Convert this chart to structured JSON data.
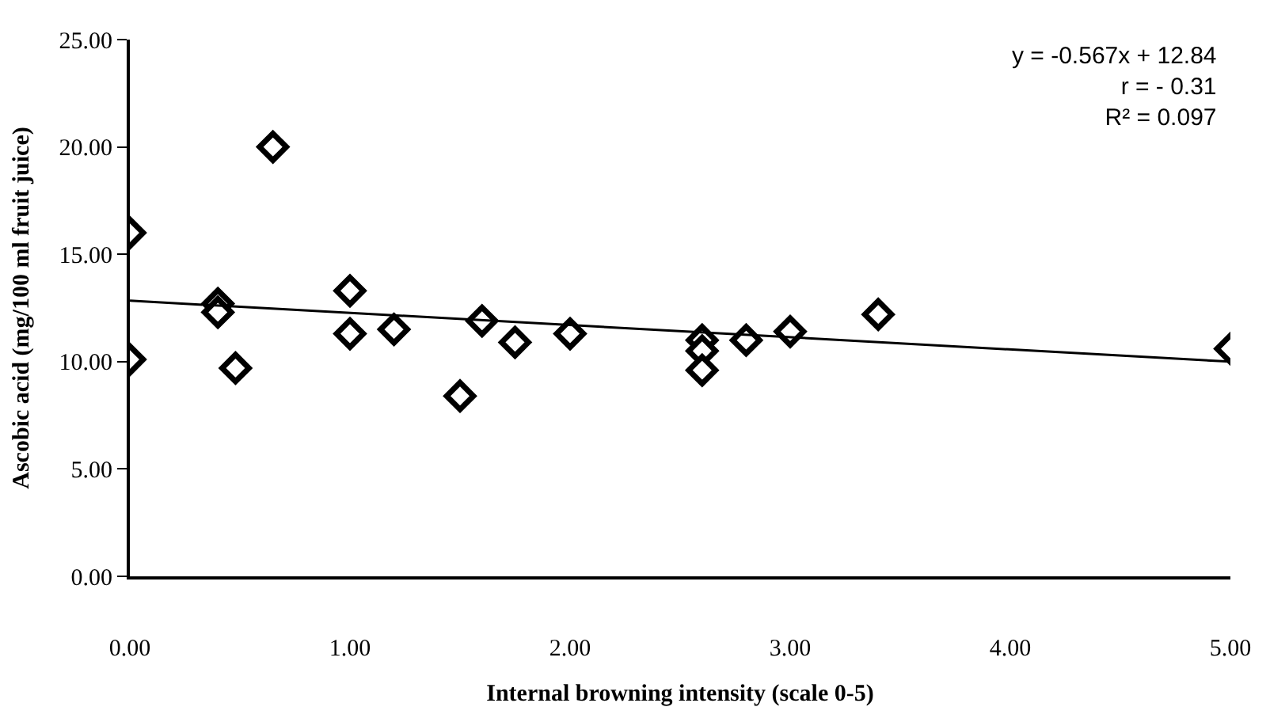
{
  "chart_data": {
    "type": "scatter",
    "xlabel": "Internal browning intensity (scale 0-5)",
    "ylabel": "Ascobic acid (mg/100 ml fruit juice)",
    "annotations": [
      "y = -0.567x + 12.84",
      "r = - 0.31",
      "R² = 0.097"
    ],
    "marker": "diamond",
    "xlim": [
      0,
      5
    ],
    "ylim": [
      0,
      25
    ],
    "xticks": [
      {
        "value": 0,
        "label": "0.00"
      },
      {
        "value": 1,
        "label": "1.00"
      },
      {
        "value": 2,
        "label": "2.00"
      },
      {
        "value": 3,
        "label": "3.00"
      },
      {
        "value": 4,
        "label": "4.00"
      },
      {
        "value": 5,
        "label": "5.00"
      }
    ],
    "yticks": [
      {
        "value": 0,
        "label": "0.00"
      },
      {
        "value": 5,
        "label": "5.00"
      },
      {
        "value": 10,
        "label": "10.00"
      },
      {
        "value": 15,
        "label": "15.00"
      },
      {
        "value": 20,
        "label": "20.00"
      },
      {
        "value": 25,
        "label": "25.00"
      }
    ],
    "series": [
      {
        "color": "#000000",
        "x": [
          0,
          0,
          0.4,
          0.4,
          0.48,
          0.65,
          1.0,
          1.0,
          1.2,
          1.5,
          1.6,
          1.75,
          2.0,
          2.6,
          2.6,
          2.6,
          2.8,
          3.0,
          3.4,
          5.0
        ],
        "values": [
          16.0,
          10.1,
          12.7,
          12.3,
          9.7,
          20.0,
          13.3,
          11.3,
          11.5,
          8.4,
          11.9,
          10.9,
          11.3,
          11.0,
          10.5,
          9.6,
          11.0,
          11.4,
          12.2,
          10.6
        ]
      },
      {
        "type": "line",
        "color": "#000000",
        "marker": "none",
        "line_style": "solid",
        "x": [
          0,
          5
        ],
        "values": [
          12.84,
          10.0
        ]
      }
    ]
  }
}
